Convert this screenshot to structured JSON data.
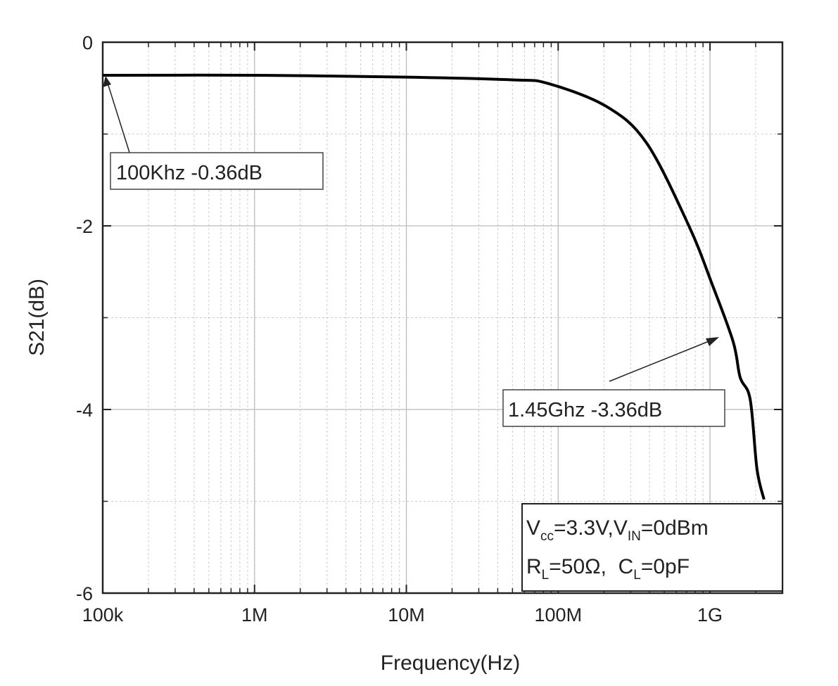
{
  "chart_data": {
    "type": "line",
    "title": "",
    "xlabel": "Frequency(Hz)",
    "ylabel": "S21(dB)",
    "xscale": "log",
    "xlim": [
      100000,
      3000000000
    ],
    "ylim": [
      -6,
      0
    ],
    "grid": true,
    "x_ticks": [
      {
        "value": 100000,
        "label": "100k"
      },
      {
        "value": 1000000,
        "label": "1M"
      },
      {
        "value": 10000000,
        "label": "10M"
      },
      {
        "value": 100000000,
        "label": "100M"
      },
      {
        "value": 1000000000,
        "label": "1G"
      }
    ],
    "y_ticks": [
      {
        "value": 0,
        "label": "0"
      },
      {
        "value": -2,
        "label": "-2"
      },
      {
        "value": -4,
        "label": "-4"
      },
      {
        "value": -6,
        "label": "-6"
      }
    ],
    "series": [
      {
        "name": "S21",
        "color": "#000000",
        "x": [
          100000,
          1000000,
          10000000,
          50000000,
          86000000,
          208000000,
          383000000,
          726000000,
          1030000000,
          1420000000,
          1580000000,
          1840000000,
          2040000000,
          2270000000
        ],
        "y": [
          -0.36,
          -0.36,
          -0.38,
          -0.41,
          -0.45,
          -0.7,
          -1.1,
          -2.0,
          -2.63,
          -3.26,
          -3.65,
          -3.89,
          -4.65,
          -4.98
        ]
      }
    ],
    "annotations": [
      {
        "text": "100Khz -0.36dB",
        "x": 100000,
        "y": -0.36
      },
      {
        "text": "1.45Ghz -3.36dB",
        "x": 1450000000,
        "y": -3.36
      }
    ],
    "conditions": {
      "line1": {
        "v": "V",
        "vsub": "cc",
        "a": "=3.3V,",
        "vin": "V",
        "vinsub": "IN",
        "b": "=0dBm"
      },
      "line2": {
        "r": "R",
        "rsub": "L",
        "a": "=50Ω,  ",
        "c": "C",
        "csub": "L",
        "b": "=0pF"
      }
    }
  }
}
